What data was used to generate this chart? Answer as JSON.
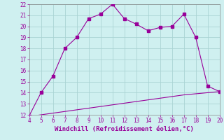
{
  "xlabel": "Windchill (Refroidissement éolien,°C)",
  "x_main": [
    4,
    5,
    6,
    7,
    8,
    9,
    10,
    11,
    12,
    13,
    14,
    15,
    16,
    17,
    18,
    19,
    20
  ],
  "y_main": [
    11.9,
    14.0,
    15.5,
    18.0,
    19.0,
    20.7,
    21.1,
    22.0,
    20.7,
    20.2,
    19.6,
    19.9,
    20.0,
    21.1,
    19.0,
    14.6,
    14.1
  ],
  "x_flat": [
    4,
    5,
    6,
    7,
    8,
    9,
    10,
    11,
    12,
    13,
    14,
    15,
    16,
    17,
    18,
    19,
    20
  ],
  "y_flat": [
    11.85,
    12.0,
    12.15,
    12.3,
    12.45,
    12.6,
    12.75,
    12.9,
    13.05,
    13.2,
    13.35,
    13.5,
    13.65,
    13.8,
    13.9,
    14.0,
    14.1
  ],
  "line_color": "#990099",
  "marker": "s",
  "marker_size": 2.5,
  "bg_color": "#cff0f0",
  "grid_color": "#aad4d4",
  "xlim": [
    4,
    20
  ],
  "ylim": [
    12,
    22
  ],
  "xticks": [
    4,
    5,
    6,
    7,
    8,
    9,
    10,
    11,
    12,
    13,
    14,
    15,
    16,
    17,
    18,
    19,
    20
  ],
  "yticks": [
    12,
    13,
    14,
    15,
    16,
    17,
    18,
    19,
    20,
    21,
    22
  ],
  "tick_fontsize": 5.5,
  "xlabel_fontsize": 6.5
}
